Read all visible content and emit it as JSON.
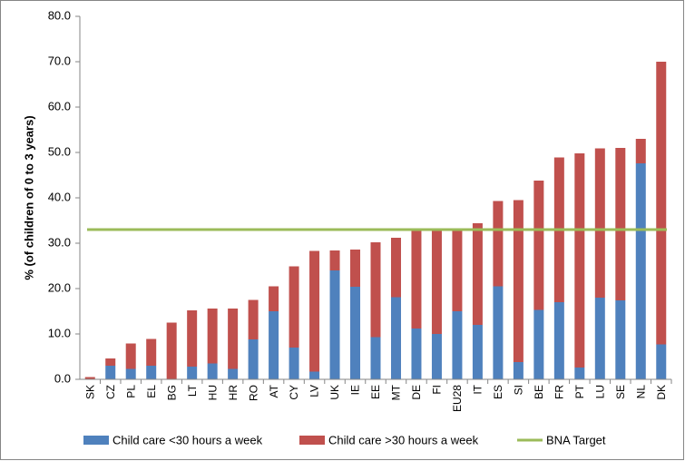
{
  "chart_data": {
    "type": "stacked-bar",
    "y_label": "% (of children of 0 to 3 years)",
    "categories": [
      "SK",
      "CZ",
      "PL",
      "EL",
      "BG",
      "LT",
      "HU",
      "HR",
      "RO",
      "AT",
      "CY",
      "LV",
      "UK",
      "IE",
      "EE",
      "MT",
      "DE",
      "FI",
      "EU28",
      "IT",
      "ES",
      "SI",
      "BE",
      "FR",
      "PT",
      "LU",
      "SE",
      "NL",
      "DK"
    ],
    "series": [
      {
        "name": "Child care <30 hours a week",
        "color": "#4f81bd",
        "values": [
          0,
          3,
          2.3,
          3,
          0,
          2.8,
          3.5,
          2.3,
          8.8,
          15,
          7,
          1.7,
          24,
          20.4,
          9.3,
          18.1,
          11.2,
          10,
          15,
          12,
          20.5,
          3.8,
          15.3,
          17,
          2.6,
          18,
          17.4,
          47.6,
          7.7
        ]
      },
      {
        "name": "Child care >30 hours a week",
        "color": "#c0504d",
        "values": [
          0.5,
          1.6,
          5.6,
          5.9,
          12.5,
          12.4,
          12.1,
          13.3,
          8.7,
          5.5,
          17.9,
          26.6,
          4.4,
          8.2,
          20.9,
          13.1,
          21.5,
          23,
          18,
          22.4,
          18.8,
          35.7,
          28.5,
          31.9,
          47.2,
          32.9,
          33.6,
          5.4,
          62.3
        ]
      }
    ],
    "target": {
      "name": "BNA Target",
      "value": 33,
      "color": "#9bbb59"
    },
    "ylim": [
      0,
      80
    ],
    "yticks": [
      {
        "value": 0,
        "label": "0.0"
      },
      {
        "value": 10,
        "label": "10.0"
      },
      {
        "value": 20,
        "label": "20.0"
      },
      {
        "value": 30,
        "label": "30.0"
      },
      {
        "value": 40,
        "label": "40.0"
      },
      {
        "value": 50,
        "label": "50.0"
      },
      {
        "value": 60,
        "label": "60.0"
      },
      {
        "value": 70,
        "label": "70.0"
      },
      {
        "value": 80,
        "label": "80.0"
      }
    ]
  }
}
